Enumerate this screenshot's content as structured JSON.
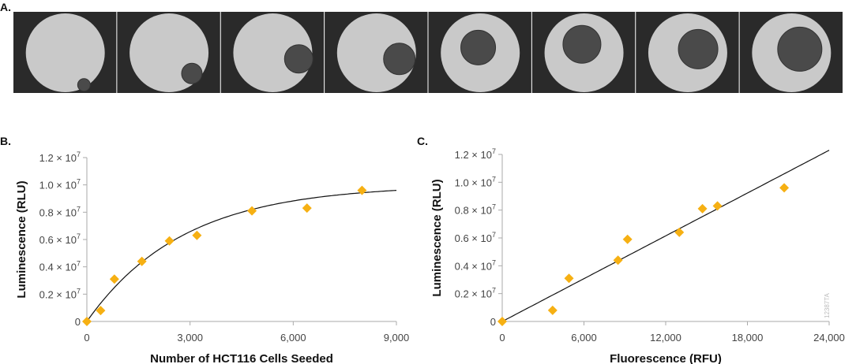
{
  "panel_labels": {
    "a": "A.",
    "b": "B.",
    "c": "C."
  },
  "watermark": "12387TA",
  "micrographs": {
    "count": 8,
    "description_colors": {
      "background": "#2a2a2a",
      "well": "#c9c9c9",
      "spheroid": "#4a4a4a"
    }
  },
  "marker_color": "#f6b013",
  "chart_data": [
    {
      "type": "scatter",
      "title": "",
      "xlabel": "Number of HCT116 Cells Seeded",
      "ylabel": "Luminescence (RLU)",
      "xlim": [
        0,
        9000
      ],
      "ylim": [
        0,
        12000000
      ],
      "xticks": [
        {
          "v": 0,
          "label": "0"
        },
        {
          "v": 3000,
          "label": "3,000"
        },
        {
          "v": 6000,
          "label": "6,000"
        },
        {
          "v": 9000,
          "label": "9,000"
        }
      ],
      "yticks": [
        {
          "v": 0,
          "label": "0"
        },
        {
          "v": 2000000,
          "label": "0.2 × 10",
          "exp": "7"
        },
        {
          "v": 4000000,
          "label": "0.4 × 10",
          "exp": "7"
        },
        {
          "v": 6000000,
          "label": "0.6 × 10",
          "exp": "7"
        },
        {
          "v": 8000000,
          "label": "0.8 × 10",
          "exp": "7"
        },
        {
          "v": 10000000,
          "label": "1.0 × 10",
          "exp": "7"
        },
        {
          "v": 12000000,
          "label": "1.2 × 10",
          "exp": "7"
        }
      ],
      "x": [
        0,
        400,
        800,
        1600,
        2400,
        3200,
        4800,
        6400,
        8000
      ],
      "y": [
        0,
        800000,
        3100000,
        4400000,
        5900000,
        6300000,
        8100000,
        8300000,
        9600000
      ],
      "fit": {
        "type": "saturation",
        "max": 10000000,
        "k": 2800
      },
      "grid": false
    },
    {
      "type": "scatter",
      "title": "",
      "xlabel": "Fluorescence (RFU)",
      "ylabel": "Luminescence (RLU)",
      "xlim": [
        0,
        24000
      ],
      "ylim": [
        0,
        12000000
      ],
      "xticks": [
        {
          "v": 0,
          "label": "0"
        },
        {
          "v": 6000,
          "label": "6,000"
        },
        {
          "v": 12000,
          "label": "12,000"
        },
        {
          "v": 18000,
          "label": "18,000"
        },
        {
          "v": 24000,
          "label": "24,000"
        }
      ],
      "yticks": [
        {
          "v": 0,
          "label": "0"
        },
        {
          "v": 2000000,
          "label": "0.2 × 10",
          "exp": "7"
        },
        {
          "v": 4000000,
          "label": "0.4 × 10",
          "exp": "7"
        },
        {
          "v": 6000000,
          "label": "0.6 × 10",
          "exp": "7"
        },
        {
          "v": 8000000,
          "label": "0.8 × 10",
          "exp": "7"
        },
        {
          "v": 10000000,
          "label": "1.0 × 10",
          "exp": "7"
        },
        {
          "v": 12000000,
          "label": "1.2 × 10",
          "exp": "7"
        }
      ],
      "x": [
        0,
        3700,
        4900,
        8500,
        9200,
        13000,
        14700,
        15800,
        20700
      ],
      "y": [
        0,
        800000,
        3100000,
        4400000,
        5900000,
        6400000,
        8100000,
        8300000,
        9600000
      ],
      "fit": {
        "type": "linear",
        "slope": 512.5,
        "intercept": 0
      },
      "grid": false
    }
  ]
}
